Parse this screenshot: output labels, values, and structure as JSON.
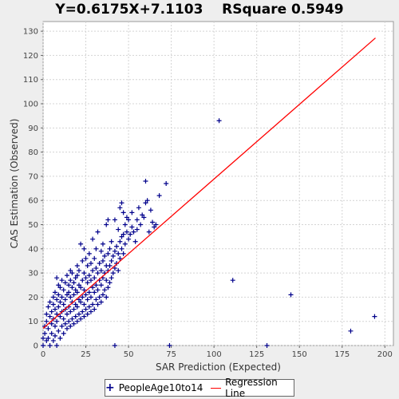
{
  "chart_data": {
    "type": "scatter",
    "title": "Y=0.6175X+7.1103    RSquare 0.5949",
    "xlabel": "SAR Prediction (Expected)",
    "ylabel": "CAS Estimation (Observed)",
    "xlim": [
      0,
      205
    ],
    "ylim": [
      0,
      134
    ],
    "xticks": [
      0,
      25,
      50,
      75,
      100,
      125,
      150,
      175,
      200
    ],
    "yticks": [
      0,
      10,
      20,
      30,
      40,
      50,
      60,
      70,
      80,
      90,
      100,
      110,
      120,
      130
    ],
    "grid": true,
    "legend_position": "bottom",
    "colors": {
      "points": "#00008b",
      "line": "#ff0000"
    },
    "series": [
      {
        "name": "PeopleAge10to14",
        "kind": "scatter",
        "marker": "plus",
        "points": [
          [
            0,
            0
          ],
          [
            0,
            3
          ],
          [
            1,
            5
          ],
          [
            1,
            8
          ],
          [
            2,
            2
          ],
          [
            2,
            10
          ],
          [
            2,
            13
          ],
          [
            3,
            7
          ],
          [
            3,
            16
          ],
          [
            3,
            3
          ],
          [
            4,
            0
          ],
          [
            4,
            12
          ],
          [
            4,
            18
          ],
          [
            5,
            5
          ],
          [
            5,
            9
          ],
          [
            5,
            14
          ],
          [
            6,
            2
          ],
          [
            6,
            11
          ],
          [
            6,
            17
          ],
          [
            6,
            20
          ],
          [
            7,
            4
          ],
          [
            7,
            8
          ],
          [
            7,
            15
          ],
          [
            7,
            22
          ],
          [
            8,
            0
          ],
          [
            8,
            10
          ],
          [
            8,
            13
          ],
          [
            8,
            19
          ],
          [
            8,
            28
          ],
          [
            9,
            6
          ],
          [
            9,
            16
          ],
          [
            9,
            21
          ],
          [
            9,
            25
          ],
          [
            10,
            3
          ],
          [
            10,
            12
          ],
          [
            10,
            18
          ],
          [
            10,
            24
          ],
          [
            11,
            8
          ],
          [
            11,
            14
          ],
          [
            11,
            20
          ],
          [
            11,
            27
          ],
          [
            12,
            5
          ],
          [
            12,
            11
          ],
          [
            12,
            17
          ],
          [
            12,
            23
          ],
          [
            13,
            9
          ],
          [
            13,
            15
          ],
          [
            13,
            19
          ],
          [
            13,
            26
          ],
          [
            14,
            7
          ],
          [
            14,
            13
          ],
          [
            14,
            21
          ],
          [
            14,
            29
          ],
          [
            15,
            10
          ],
          [
            15,
            16
          ],
          [
            15,
            22
          ],
          [
            15,
            25
          ],
          [
            16,
            8
          ],
          [
            16,
            14
          ],
          [
            16,
            20
          ],
          [
            16,
            27
          ],
          [
            16,
            31
          ],
          [
            17,
            11
          ],
          [
            17,
            18
          ],
          [
            17,
            24
          ],
          [
            17,
            30
          ],
          [
            18,
            9
          ],
          [
            18,
            15
          ],
          [
            18,
            21
          ],
          [
            18,
            26
          ],
          [
            19,
            12
          ],
          [
            19,
            17
          ],
          [
            19,
            23
          ],
          [
            19,
            28
          ],
          [
            20,
            10
          ],
          [
            20,
            16
          ],
          [
            20,
            22
          ],
          [
            20,
            29
          ],
          [
            20,
            33
          ],
          [
            21,
            13
          ],
          [
            21,
            19
          ],
          [
            21,
            25
          ],
          [
            21,
            31
          ],
          [
            22,
            11
          ],
          [
            22,
            18
          ],
          [
            22,
            24
          ],
          [
            22,
            42
          ],
          [
            23,
            14
          ],
          [
            23,
            20
          ],
          [
            23,
            27
          ],
          [
            23,
            35
          ],
          [
            24,
            12
          ],
          [
            24,
            17
          ],
          [
            24,
            23
          ],
          [
            24,
            30
          ],
          [
            24,
            40
          ],
          [
            25,
            15
          ],
          [
            25,
            21
          ],
          [
            25,
            28
          ],
          [
            25,
            36
          ],
          [
            26,
            13
          ],
          [
            26,
            19
          ],
          [
            26,
            26
          ],
          [
            26,
            33
          ],
          [
            27,
            16
          ],
          [
            27,
            22
          ],
          [
            27,
            29
          ],
          [
            27,
            38
          ],
          [
            28,
            14
          ],
          [
            28,
            20
          ],
          [
            28,
            27
          ],
          [
            28,
            34
          ],
          [
            29,
            17
          ],
          [
            29,
            24
          ],
          [
            29,
            31
          ],
          [
            29,
            44
          ],
          [
            30,
            15
          ],
          [
            30,
            22
          ],
          [
            30,
            28
          ],
          [
            30,
            36
          ],
          [
            31,
            19
          ],
          [
            31,
            25
          ],
          [
            31,
            32
          ],
          [
            31,
            40
          ],
          [
            32,
            17
          ],
          [
            32,
            23
          ],
          [
            32,
            30
          ],
          [
            32,
            47
          ],
          [
            33,
            20
          ],
          [
            33,
            27
          ],
          [
            33,
            34
          ],
          [
            34,
            18
          ],
          [
            34,
            25
          ],
          [
            34,
            31
          ],
          [
            34,
            39
          ],
          [
            35,
            21
          ],
          [
            35,
            28
          ],
          [
            35,
            35
          ],
          [
            35,
            42
          ],
          [
            36,
            23
          ],
          [
            36,
            30
          ],
          [
            36,
            37
          ],
          [
            37,
            20
          ],
          [
            37,
            27
          ],
          [
            37,
            33
          ],
          [
            37,
            50
          ],
          [
            38,
            24
          ],
          [
            38,
            31
          ],
          [
            38,
            38
          ],
          [
            38,
            52
          ],
          [
            39,
            26
          ],
          [
            39,
            33
          ],
          [
            39,
            40
          ],
          [
            40,
            28
          ],
          [
            40,
            35
          ],
          [
            40,
            43
          ],
          [
            41,
            30
          ],
          [
            41,
            37
          ],
          [
            42,
            0
          ],
          [
            42,
            32
          ],
          [
            42,
            39
          ],
          [
            42,
            52
          ],
          [
            43,
            34
          ],
          [
            43,
            41
          ],
          [
            44,
            31
          ],
          [
            44,
            38
          ],
          [
            44,
            48
          ],
          [
            45,
            36
          ],
          [
            45,
            43
          ],
          [
            45,
            57
          ],
          [
            46,
            40
          ],
          [
            46,
            45
          ],
          [
            46,
            59
          ],
          [
            47,
            38
          ],
          [
            47,
            46
          ],
          [
            47,
            55
          ],
          [
            48,
            42
          ],
          [
            48,
            50
          ],
          [
            49,
            47
          ],
          [
            49,
            53
          ],
          [
            50,
            44
          ],
          [
            50,
            52
          ],
          [
            51,
            46
          ],
          [
            52,
            49
          ],
          [
            52,
            55
          ],
          [
            53,
            47
          ],
          [
            54,
            43
          ],
          [
            55,
            48
          ],
          [
            55,
            52
          ],
          [
            56,
            57
          ],
          [
            57,
            50
          ],
          [
            58,
            54
          ],
          [
            59,
            53
          ],
          [
            60,
            59
          ],
          [
            60,
            68
          ],
          [
            61,
            60
          ],
          [
            62,
            47
          ],
          [
            63,
            56
          ],
          [
            64,
            51
          ],
          [
            65,
            49
          ],
          [
            66,
            50
          ],
          [
            68,
            62
          ],
          [
            72,
            67
          ],
          [
            74,
            0
          ],
          [
            103,
            93
          ],
          [
            111,
            27
          ],
          [
            131,
            0
          ],
          [
            145,
            21
          ],
          [
            180,
            6
          ],
          [
            194,
            12
          ]
        ]
      },
      {
        "name": "Regression Line",
        "kind": "line",
        "slope": 0.6175,
        "intercept": 7.1103,
        "x_range": [
          0,
          194.5
        ]
      }
    ]
  }
}
